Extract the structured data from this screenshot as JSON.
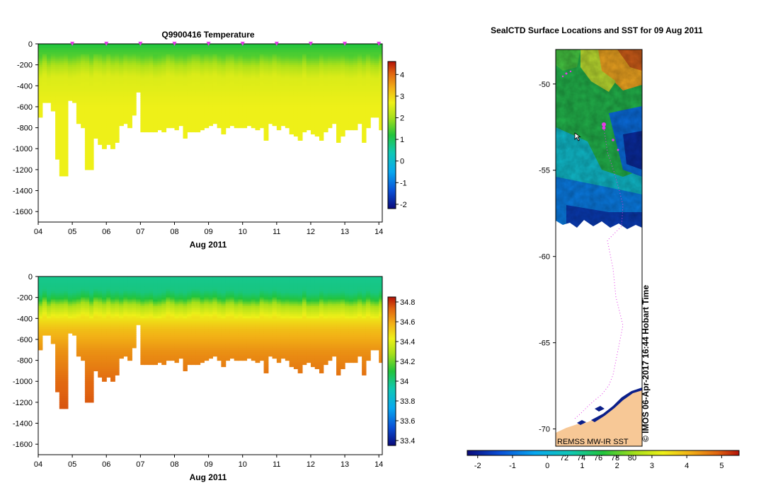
{
  "chart_data": [
    {
      "type": "heatmap",
      "title": "Q9900416  Temperature",
      "xlabel": "Aug 2011",
      "ylabel": "",
      "x_ticks": [
        "04",
        "05",
        "06",
        "07",
        "08",
        "09",
        "10",
        "11",
        "12",
        "13",
        "14"
      ],
      "y_ticks": [
        "0",
        "-200",
        "-400",
        "-600",
        "-800",
        "-1000",
        "-1200",
        "-1400",
        "-1600"
      ],
      "xlim": [
        4,
        14.1
      ],
      "ylim": [
        -1700,
        0
      ],
      "colorbar": {
        "min": -2.2,
        "max": 4.6,
        "ticks": [
          "-2",
          "-1",
          "0",
          "1",
          "2",
          "3",
          "4"
        ]
      },
      "profile_times": [
        4.0,
        4.12,
        4.25,
        4.37,
        4.5,
        4.62,
        4.75,
        4.87,
        5.0,
        5.12,
        5.25,
        5.37,
        5.5,
        5.62,
        5.75,
        5.87,
        6.0,
        6.12,
        6.25,
        6.37,
        6.5,
        6.62,
        6.75,
        6.87,
        7.0,
        7.12,
        7.25,
        7.37,
        7.5,
        7.62,
        7.75,
        7.87,
        8.0,
        8.12,
        8.25,
        8.37,
        8.5,
        8.62,
        8.75,
        8.87,
        9.0,
        9.12,
        9.25,
        9.37,
        9.5,
        9.62,
        9.75,
        9.87,
        10.0,
        10.12,
        10.25,
        10.37,
        10.5,
        10.62,
        10.75,
        10.87,
        11.0,
        11.12,
        11.25,
        11.37,
        11.5,
        11.62,
        11.75,
        11.87,
        12.0,
        12.12,
        12.25,
        12.37,
        12.5,
        12.62,
        12.75,
        12.87,
        13.0,
        13.12,
        13.25,
        13.37,
        13.5,
        13.62,
        13.75,
        13.87,
        14.0
      ],
      "max_depths": [
        700,
        560,
        560,
        640,
        1090,
        1250,
        1250,
        540,
        550,
        760,
        800,
        1190,
        1190,
        900,
        960,
        1000,
        960,
        1000,
        930,
        780,
        760,
        800,
        680,
        450,
        840,
        840,
        840,
        830,
        820,
        840,
        790,
        800,
        820,
        770,
        890,
        840,
        830,
        840,
        820,
        800,
        780,
        760,
        790,
        860,
        790,
        780,
        790,
        790,
        800,
        780,
        800,
        820,
        800,
        910,
        760,
        780,
        810,
        780,
        800,
        860,
        880,
        920,
        840,
        820,
        860,
        880,
        920,
        840,
        800,
        760,
        930,
        880,
        820,
        810,
        810,
        760,
        940,
        800,
        700,
        690,
        820
      ],
      "profile": {
        "depths": [
          0,
          100,
          200,
          300,
          600,
          1300
        ],
        "values": [
          1.2,
          1.5,
          2.1,
          2.5,
          2.7,
          2.7
        ]
      }
    },
    {
      "type": "heatmap",
      "title": "",
      "xlabel": "Aug 2011",
      "ylabel": "",
      "x_ticks": [
        "04",
        "05",
        "06",
        "07",
        "08",
        "09",
        "10",
        "11",
        "12",
        "13",
        "14"
      ],
      "y_ticks": [
        "0",
        "-200",
        "-400",
        "-600",
        "-800",
        "-1000",
        "-1200",
        "-1400",
        "-1600"
      ],
      "xlim": [
        4,
        14.1
      ],
      "ylim": [
        -1700,
        0
      ],
      "colorbar": {
        "min": 33.35,
        "max": 34.85,
        "ticks": [
          "34.8",
          "34.6",
          "34.4",
          "34.2",
          "34",
          "33.8",
          "33.6",
          "33.4"
        ]
      },
      "profile": {
        "depths": [
          0,
          130,
          200,
          260,
          380,
          500,
          700,
          1000,
          1300
        ],
        "values": [
          33.98,
          34.0,
          34.1,
          34.28,
          34.45,
          34.55,
          34.64,
          34.72,
          34.76
        ]
      }
    },
    {
      "type": "heatmap",
      "title": "SealCTD Surface Locations and SST for 09 Aug 2011",
      "y_ticks": [
        "-50",
        "-55",
        "-60",
        "-65",
        "-70"
      ],
      "ylim": [
        -71,
        -48
      ],
      "colorbar": {
        "min": -2.3,
        "max": 5.5,
        "ticks": [
          "-2",
          "-1",
          "0",
          "1",
          "2",
          "3",
          "4",
          "5"
        ]
      },
      "colorbar_inner_ticks": [
        "72",
        "74",
        "76",
        "78",
        "80"
      ],
      "credit": "REMSS MW-IR SST",
      "watermark": "© IMOS 06-Apr-2017 16:44 Hobart Time",
      "colors": {
        "land": "#f7c896",
        "track": "#e23ce6",
        "ice": "#0b1f8a"
      }
    }
  ]
}
